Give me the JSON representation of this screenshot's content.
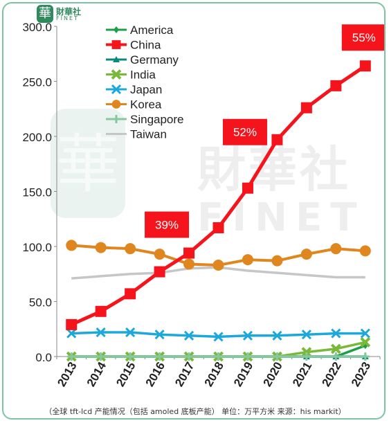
{
  "brand": {
    "seal_char": "華",
    "name_cn": "財華社",
    "name_en": "FINET",
    "watermark_cn": "財華社",
    "watermark_en": "FINET"
  },
  "caption": "（全球 tft-lcd 产能情况（包括 amoled 底板产能） 单位：万平方米 来源：his markit）",
  "chart_data": {
    "type": "line",
    "x": [
      "2013",
      "2014",
      "2015",
      "2016",
      "2017",
      "2018",
      "2019",
      "2020",
      "2021",
      "2022",
      "2023"
    ],
    "ylim": [
      0,
      300
    ],
    "yticks": [
      "0.0",
      "50.0",
      "100.0",
      "150.0",
      "200.0",
      "250.0",
      "300.0"
    ],
    "grid": false,
    "legend_position": "top-center",
    "series": [
      {
        "name": "America",
        "color": "#1aa04a",
        "marker": "diamond",
        "values": [
          0,
          0,
          0,
          0,
          0,
          0,
          0,
          0,
          0,
          0,
          10
        ]
      },
      {
        "name": "China",
        "color": "#f5141c",
        "marker": "square",
        "values": [
          29,
          41,
          57,
          77,
          94,
          117,
          153,
          197,
          226,
          246,
          264
        ]
      },
      {
        "name": "Germany",
        "color": "#0b8a7a",
        "marker": "triangle",
        "values": [
          0,
          0,
          0,
          0,
          0,
          0,
          0,
          0,
          0,
          0,
          0
        ]
      },
      {
        "name": "India",
        "color": "#7ab83a",
        "marker": "x",
        "values": [
          0,
          0,
          0,
          0,
          0,
          0,
          0,
          0,
          4,
          7,
          13
        ]
      },
      {
        "name": "Japan",
        "color": "#1ca8dc",
        "marker": "cross",
        "values": [
          21,
          22,
          22,
          20,
          19,
          18,
          19,
          19,
          20,
          21,
          21
        ]
      },
      {
        "name": "Korea",
        "color": "#e0861f",
        "marker": "circle",
        "values": [
          101,
          99,
          98,
          93,
          84,
          83,
          88,
          87,
          93,
          98,
          96
        ]
      },
      {
        "name": "Singapore",
        "color": "#86c9a0",
        "marker": "plus",
        "values": [
          0,
          0,
          0,
          0,
          0,
          0,
          0,
          0,
          0,
          0,
          0
        ]
      },
      {
        "name": "Taiwan",
        "color": "#c6c6c6",
        "marker": "none",
        "values": [
          71,
          73,
          75,
          76,
          80,
          81,
          78,
          76,
          74,
          72,
          72
        ]
      }
    ],
    "annotations": [
      {
        "text": "39%",
        "x": "2017"
      },
      {
        "text": "52%",
        "x": "2019"
      },
      {
        "text": "55%",
        "x": "2023"
      }
    ]
  }
}
